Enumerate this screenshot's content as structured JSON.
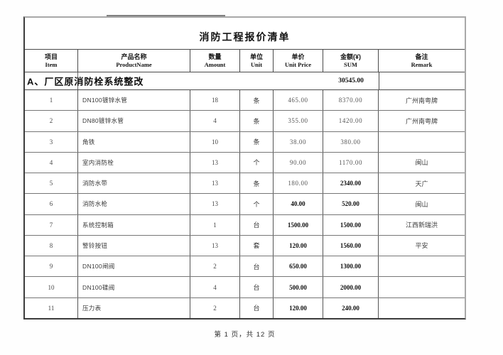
{
  "title": "消防工程报价清单",
  "columns": [
    {
      "zh": "项目",
      "en": "Item"
    },
    {
      "zh": "产品名称",
      "en": "ProductName"
    },
    {
      "zh": "数量",
      "en": "Amount"
    },
    {
      "zh": "单位",
      "en": "Unit"
    },
    {
      "zh": "单价",
      "en": "Unit Price"
    },
    {
      "zh": "金额(¥)",
      "en": "SUM"
    },
    {
      "zh": "备注",
      "en": "Remark"
    }
  ],
  "section": {
    "label": "A、厂区原消防栓系统整改",
    "sum": "30545.00"
  },
  "rows": [
    {
      "item": "1",
      "product": "DN100镀锌水管",
      "amount": "18",
      "unit": "条",
      "unit_price": "465.00",
      "sum": "8370.00",
      "remark": "广州南粤牌",
      "price_bold": false,
      "sum_bold": false
    },
    {
      "item": "2",
      "product": "DN80镀锌水管",
      "amount": "4",
      "unit": "条",
      "unit_price": "355.00",
      "sum": "1420.00",
      "remark": "广州南粤牌",
      "price_bold": false,
      "sum_bold": false
    },
    {
      "item": "3",
      "product": "角铁",
      "amount": "10",
      "unit": "条",
      "unit_price": "38.00",
      "sum": "380.00",
      "remark": "",
      "price_bold": false,
      "sum_bold": false
    },
    {
      "item": "4",
      "product": "室内消防栓",
      "amount": "13",
      "unit": "个",
      "unit_price": "90.00",
      "sum": "1170.00",
      "remark": "闽山",
      "price_bold": false,
      "sum_bold": false
    },
    {
      "item": "5",
      "product": "消防水带",
      "amount": "13",
      "unit": "条",
      "unit_price": "180.00",
      "sum": "2340.00",
      "remark": "天广",
      "price_bold": false,
      "sum_bold": true
    },
    {
      "item": "6",
      "product": "消防水枪",
      "amount": "13",
      "unit": "个",
      "unit_price": "40.00",
      "sum": "520.00",
      "remark": "闽山",
      "price_bold": true,
      "sum_bold": true
    },
    {
      "item": "7",
      "product": "系统控制箱",
      "amount": "1",
      "unit": "台",
      "unit_price": "1500.00",
      "sum": "1500.00",
      "remark": "江西新瑞洪",
      "price_bold": true,
      "sum_bold": true
    },
    {
      "item": "8",
      "product": "警铃按钮",
      "amount": "13",
      "unit": "套",
      "unit_price": "120.00",
      "sum": "1560.00",
      "remark": "平安",
      "price_bold": true,
      "sum_bold": true
    },
    {
      "item": "9",
      "product": "DN100闸阀",
      "amount": "2",
      "unit": "台",
      "unit_price": "650.00",
      "sum": "1300.00",
      "remark": "",
      "price_bold": true,
      "sum_bold": true
    },
    {
      "item": "10",
      "product": "DN100碟阀",
      "amount": "4",
      "unit": "台",
      "unit_price": "500.00",
      "sum": "2000.00",
      "remark": "",
      "price_bold": true,
      "sum_bold": true
    },
    {
      "item": "11",
      "product": "压力表",
      "amount": "2",
      "unit": "台",
      "unit_price": "120.00",
      "sum": "240.00",
      "remark": "",
      "price_bold": true,
      "sum_bold": true
    }
  ],
  "footer": {
    "page_text": "第 1 页，共 12 页"
  }
}
